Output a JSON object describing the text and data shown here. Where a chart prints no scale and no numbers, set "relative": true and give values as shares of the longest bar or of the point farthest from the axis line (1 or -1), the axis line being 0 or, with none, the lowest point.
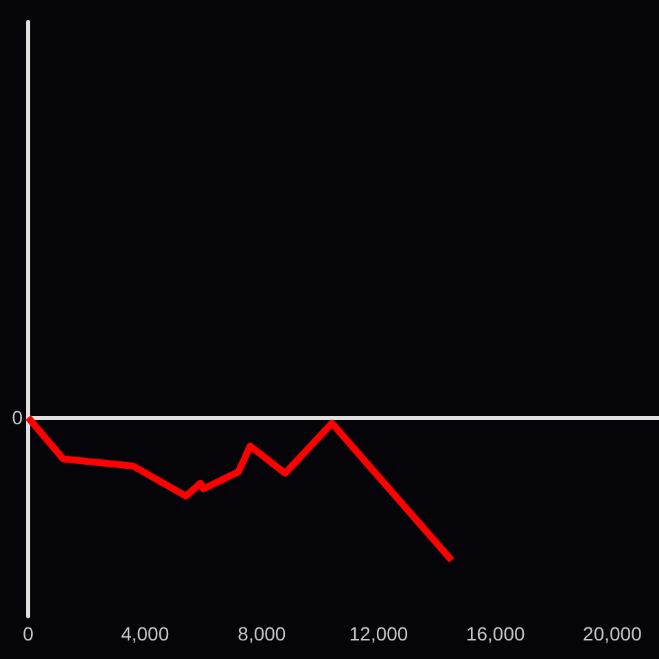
{
  "chart_data": {
    "type": "line",
    "relative": true,
    "x": [
      0,
      1200,
      3600,
      5400,
      5900,
      6000,
      7200,
      7600,
      8800,
      10400,
      14500
    ],
    "values": [
      0,
      -0.29,
      -0.34,
      -0.55,
      -0.46,
      -0.5,
      -0.38,
      -0.2,
      -0.39,
      -0.04,
      -1
    ],
    "color": "#ff0000",
    "marker": "none",
    "line_style": "solid",
    "xlim": [
      0,
      21600
    ],
    "xticks": [
      0,
      {
        "value": 4000,
        "label": "4,000"
      },
      {
        "value": 8000,
        "label": "8,000"
      },
      {
        "value": 12000,
        "label": "12,000"
      },
      {
        "value": 16000,
        "label": "16,000"
      },
      {
        "value": 20000,
        "label": "20,000"
      }
    ],
    "ref_lines": [
      {
        "axis": "y",
        "value": 0,
        "label": "0",
        "color": "#e0e0e0"
      }
    ]
  }
}
